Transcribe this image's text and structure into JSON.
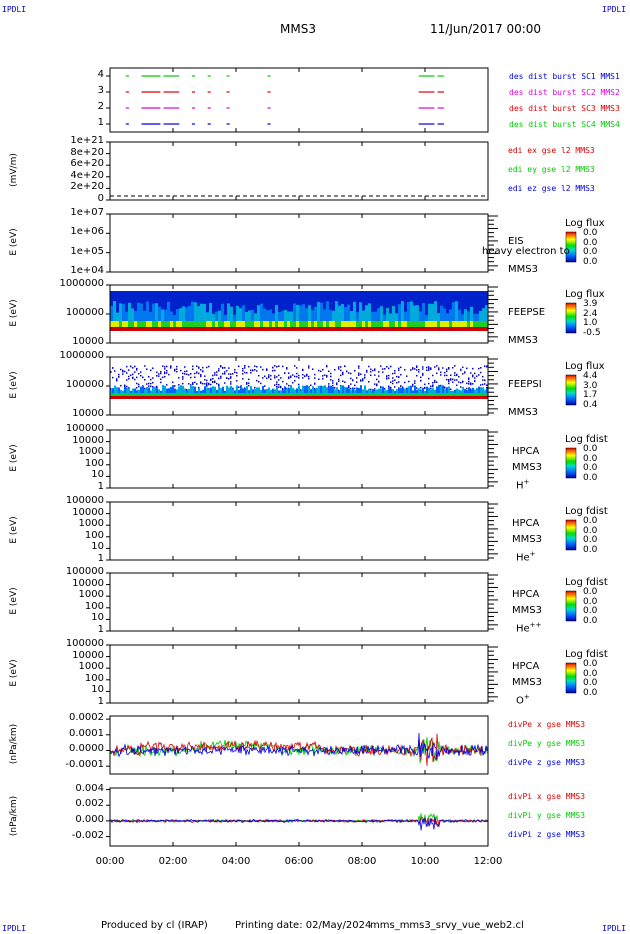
{
  "header": {
    "corner_label": "IPDLI",
    "mission": "MMS3",
    "date": "11/Jun/2017 00:00"
  },
  "footer": {
    "produced_by": "Produced by cl (IRAP)",
    "printing_date": "Printing date: 02/May/2024",
    "script_name": "mms_mms3_srvy_vue_web2.cl"
  },
  "chart_data": {
    "type": "multi-panel time series",
    "x_ticks": [
      "00:00",
      "02:00",
      "04:00",
      "06:00",
      "08:00",
      "10:00",
      "12:00"
    ],
    "x_range_hours": [
      0,
      12
    ],
    "panels": [
      {
        "id": "burst",
        "type": "timeline",
        "y_ticks": [
          "4",
          "3",
          "2",
          "1"
        ],
        "legend": [
          {
            "text": "des dist burst SC1 MMS1",
            "color": "#0000dd"
          },
          {
            "text": "des dist burst SC2 MMS2",
            "color": "#dd00dd"
          },
          {
            "text": "des dist burst SC3 MMS3",
            "color": "#dd0000"
          },
          {
            "text": "des dist burst SC4 MMS4",
            "color": "#00cc00"
          }
        ],
        "segments_hours": [
          [
            0.5,
            0.6
          ],
          [
            1.0,
            1.6
          ],
          [
            1.7,
            2.2
          ],
          [
            2.6,
            2.7
          ],
          [
            3.1,
            3.2
          ],
          [
            3.7,
            3.8
          ],
          [
            5.0,
            5.1
          ],
          [
            9.8,
            10.3
          ],
          [
            10.4,
            10.6
          ]
        ]
      },
      {
        "id": "edi",
        "type": "line",
        "ylabel": "(mV/m)",
        "y_ticks": [
          "1e+21",
          "8e+20",
          "6e+20",
          "4e+20",
          "2e+20",
          "0"
        ],
        "legend": [
          {
            "text": "edi ex gse l2 MMS3",
            "color": "#dd0000"
          },
          {
            "text": "edi ey gse l2 MMS3",
            "color": "#00cc00"
          },
          {
            "text": "edi ez gse l2 MMS3",
            "color": "#0000dd"
          }
        ]
      },
      {
        "id": "eis",
        "type": "spectrogram",
        "ylabel": "E (eV)",
        "y_ticks": [
          "1e+07",
          "1e+06",
          "1e+05",
          "1e+04"
        ],
        "instrument": "EIS",
        "instrument_extra": "heavy electron to",
        "spacecraft": "MMS3",
        "cb_title": "Log flux",
        "cb_ticks": [
          "0.0",
          "0.0",
          "0.0",
          "0.0"
        ]
      },
      {
        "id": "feeps_e",
        "type": "spectrogram",
        "ylabel": "E (eV)",
        "y_ticks": [
          "1000000",
          "100000",
          "10000"
        ],
        "instrument": "FEEPSE",
        "spacecraft": "MMS3",
        "cb_title": "Log flux",
        "cb_ticks": [
          "3.9",
          "2.4",
          "1.0",
          "-0.5"
        ]
      },
      {
        "id": "feeps_i",
        "type": "spectrogram",
        "ylabel": "E (eV)",
        "y_ticks": [
          "1000000",
          "100000",
          "10000"
        ],
        "instrument": "FEEPSI",
        "spacecraft": "MMS3",
        "cb_title": "Log flux",
        "cb_ticks": [
          "4.4",
          "3.0",
          "1.7",
          "0.4"
        ]
      },
      {
        "id": "hpca_h",
        "type": "spectrogram",
        "ylabel": "E (eV)",
        "y_ticks": [
          "100000",
          "10000",
          "1000",
          "100",
          "10",
          "1"
        ],
        "instrument": "HPCA",
        "spacecraft": "MMS3",
        "species": "H",
        "species_sup": "+",
        "cb_title": "Log fdist",
        "cb_ticks": [
          "0.0",
          "0.0",
          "0.0",
          "0.0"
        ]
      },
      {
        "id": "hpca_he1",
        "type": "spectrogram",
        "ylabel": "E (eV)",
        "y_ticks": [
          "100000",
          "10000",
          "1000",
          "100",
          "10",
          "1"
        ],
        "instrument": "HPCA",
        "spacecraft": "MMS3",
        "species": "He",
        "species_sup": "+",
        "cb_title": "Log fdist",
        "cb_ticks": [
          "0.0",
          "0.0",
          "0.0",
          "0.0"
        ]
      },
      {
        "id": "hpca_he2",
        "type": "spectrogram",
        "ylabel": "E (eV)",
        "y_ticks": [
          "100000",
          "10000",
          "1000",
          "100",
          "10",
          "1"
        ],
        "instrument": "HPCA",
        "spacecraft": "MMS3",
        "species": "He",
        "species_sup": "++",
        "cb_title": "Log fdist",
        "cb_ticks": [
          "0.0",
          "0.0",
          "0.0",
          "0.0"
        ]
      },
      {
        "id": "hpca_o",
        "type": "spectrogram",
        "ylabel": "E (eV)",
        "y_ticks": [
          "100000",
          "10000",
          "1000",
          "100",
          "10",
          "1"
        ],
        "instrument": "HPCA",
        "spacecraft": "MMS3",
        "species": "O",
        "species_sup": "+",
        "cb_title": "Log fdist",
        "cb_ticks": [
          "0.0",
          "0.0",
          "0.0",
          "0.0"
        ]
      },
      {
        "id": "divpe",
        "type": "line",
        "ylabel": "(nPa/km)",
        "y_ticks": [
          "0.0002",
          "0.0001",
          "0.0000",
          "-0.0001"
        ],
        "y_range": [
          -0.00015,
          0.00022
        ],
        "legend": [
          {
            "text": "divPe x gse MMS3",
            "color": "#dd0000"
          },
          {
            "text": "divPe y gse MMS3",
            "color": "#00cc00"
          },
          {
            "text": "divPe z gse MMS3",
            "color": "#0000dd"
          }
        ]
      },
      {
        "id": "divpi",
        "type": "line",
        "ylabel": "(nPa/km)",
        "y_ticks": [
          "0.004",
          "0.002",
          "0.000",
          "-0.002"
        ],
        "y_range": [
          -0.0032,
          0.0042
        ],
        "legend": [
          {
            "text": "divPi x gse MMS3",
            "color": "#dd0000"
          },
          {
            "text": "divPi y gse MMS3",
            "color": "#00cc00"
          },
          {
            "text": "divPi z gse MMS3",
            "color": "#0000dd"
          }
        ]
      }
    ]
  }
}
